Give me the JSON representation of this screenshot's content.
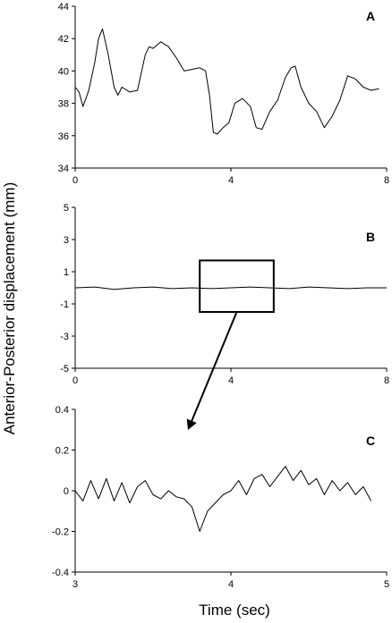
{
  "figure": {
    "ylabel": "Anterior-Posterior displacement (mm)",
    "xlabel": "Time (sec)"
  },
  "chart_data": [
    {
      "panel": "A",
      "type": "line",
      "xlabel": "Time (sec)",
      "ylabel": "Anterior-Posterior displacement (mm)",
      "xlim": [
        0,
        8
      ],
      "ylim": [
        34,
        44
      ],
      "xticks": [
        0,
        4,
        8
      ],
      "yticks": [
        34,
        36,
        38,
        40,
        42,
        44
      ],
      "grid": false,
      "series": [
        {
          "x": [
            0,
            0.1,
            0.2,
            0.35,
            0.5,
            0.6,
            0.7,
            0.85,
            1.0,
            1.1,
            1.2,
            1.4,
            1.6,
            1.8,
            1.9,
            2.0,
            2.2,
            2.4,
            2.6,
            2.8,
            3.0,
            3.2,
            3.35,
            3.45,
            3.55,
            3.65,
            3.8,
            3.95,
            4.1,
            4.3,
            4.5,
            4.65,
            4.8,
            5.0,
            5.2,
            5.4,
            5.55,
            5.65,
            5.8,
            6.0,
            6.2,
            6.4,
            6.6,
            6.8,
            7.0,
            7.2,
            7.4,
            7.6,
            7.8
          ],
          "y": [
            39.0,
            38.7,
            37.8,
            38.8,
            40.5,
            42.0,
            42.6,
            41.0,
            39.0,
            38.5,
            39.0,
            38.7,
            38.8,
            41.0,
            41.5,
            41.4,
            41.8,
            41.5,
            40.8,
            40.0,
            40.1,
            40.2,
            40.0,
            38.5,
            36.2,
            36.1,
            36.5,
            36.8,
            38.0,
            38.3,
            37.8,
            36.5,
            36.4,
            37.5,
            38.2,
            39.6,
            40.2,
            40.3,
            39.0,
            38.0,
            37.5,
            36.5,
            37.2,
            38.2,
            39.7,
            39.5,
            39.0,
            38.8,
            38.9
          ]
        }
      ]
    },
    {
      "panel": "B",
      "type": "line",
      "xlabel": "Time (sec)",
      "ylabel": "Anterior-Posterior displacement (mm)",
      "xlim": [
        0,
        8
      ],
      "ylim": [
        -5,
        5
      ],
      "xticks": [
        0,
        4,
        8
      ],
      "yticks": [
        -5,
        -3,
        -1,
        1,
        3,
        5
      ],
      "grid": false,
      "zoom_box": {
        "x": [
          3.2,
          5.1
        ],
        "y": [
          -1.5,
          1.7
        ]
      },
      "series": [
        {
          "x": [
            0,
            0.5,
            1.0,
            1.5,
            2.0,
            2.5,
            3.0,
            3.5,
            4.0,
            4.5,
            5.0,
            5.5,
            6.0,
            6.5,
            7.0,
            7.5,
            8.0
          ],
          "y": [
            0.0,
            0.05,
            -0.1,
            0.0,
            0.05,
            -0.05,
            0.0,
            -0.05,
            0.0,
            0.05,
            0.0,
            -0.05,
            0.05,
            0.0,
            -0.05,
            0.0,
            0.0
          ]
        }
      ]
    },
    {
      "panel": "C",
      "type": "line",
      "xlabel": "Time (sec)",
      "ylabel": "Anterior-Posterior displacement (mm)",
      "xlim": [
        3,
        5
      ],
      "ylim": [
        -0.4,
        0.4
      ],
      "xticks": [
        3,
        4,
        5
      ],
      "yticks": [
        -0.4,
        -0.2,
        0,
        0.2,
        0.4
      ],
      "grid": false,
      "series": [
        {
          "x": [
            3.0,
            3.05,
            3.1,
            3.15,
            3.2,
            3.25,
            3.3,
            3.35,
            3.4,
            3.45,
            3.5,
            3.55,
            3.6,
            3.65,
            3.7,
            3.75,
            3.8,
            3.85,
            3.9,
            3.95,
            4.0,
            4.05,
            4.1,
            4.15,
            4.2,
            4.25,
            4.3,
            4.35,
            4.4,
            4.45,
            4.5,
            4.55,
            4.6,
            4.65,
            4.7,
            4.75,
            4.8,
            4.85,
            4.9
          ],
          "y": [
            0.0,
            -0.05,
            0.05,
            -0.04,
            0.06,
            -0.05,
            0.04,
            -0.06,
            0.02,
            0.05,
            -0.02,
            -0.04,
            0.0,
            -0.03,
            -0.04,
            -0.08,
            -0.2,
            -0.1,
            -0.06,
            -0.02,
            0.0,
            0.05,
            -0.02,
            0.06,
            0.08,
            0.02,
            0.07,
            0.12,
            0.05,
            0.1,
            0.03,
            0.06,
            -0.02,
            0.05,
            0.0,
            0.04,
            -0.02,
            0.02,
            -0.05
          ]
        }
      ]
    }
  ]
}
